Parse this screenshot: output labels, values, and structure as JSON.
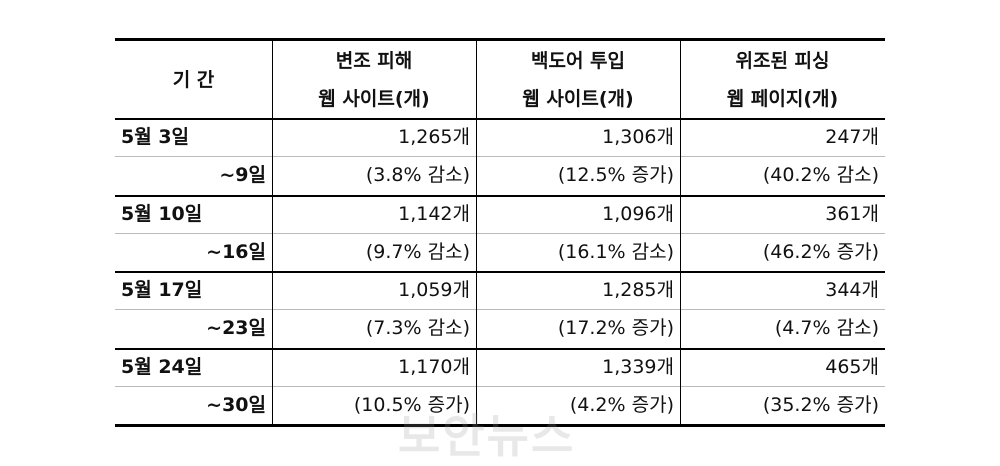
{
  "table": {
    "header": [
      [
        "기 간"
      ],
      [
        "변조 피해",
        "웹 사이트(개)"
      ],
      [
        "백도어 투입",
        "웹 사이트(개)"
      ],
      [
        "위조된 피싱",
        "웹 페이지(개)"
      ]
    ],
    "rows": [
      {
        "period": [
          "5월 3일",
          "~9일"
        ],
        "cells": [
          [
            "1,265개",
            "(3.8% 감소)"
          ],
          [
            "1,306개",
            "(12.5% 증가)"
          ],
          [
            "247개",
            "(40.2% 감소)"
          ]
        ]
      },
      {
        "period": [
          "5월 10일",
          "~16일"
        ],
        "cells": [
          [
            "1,142개",
            "(9.7% 감소)"
          ],
          [
            "1,096개",
            "(16.1% 감소)"
          ],
          [
            "361개",
            "(46.2% 증가)"
          ]
        ]
      },
      {
        "period": [
          "5월 17일",
          "~23일"
        ],
        "cells": [
          [
            "1,059개",
            "(7.3% 감소)"
          ],
          [
            "1,285개",
            "(17.2% 증가)"
          ],
          [
            "344개",
            "(4.7% 감소)"
          ]
        ]
      },
      {
        "period": [
          "5월 24일",
          "~30일"
        ],
        "cells": [
          [
            "1,170개",
            "(10.5% 증가)"
          ],
          [
            "1,339개",
            "(4.2% 증가)"
          ],
          [
            "465개",
            "(35.2% 증가)"
          ]
        ]
      }
    ]
  },
  "watermark": "보안뉴스"
}
